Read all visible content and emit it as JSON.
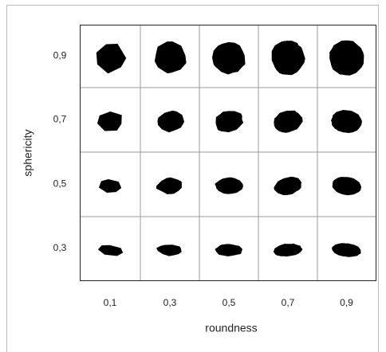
{
  "axes": {
    "x_label": "roundness",
    "x_ticks": [
      "0,1",
      "0,3",
      "0,5",
      "0,7",
      "0,9"
    ],
    "y_label": "sphericity",
    "y_ticks": [
      "0,9",
      "0,7",
      "0,5",
      "0,3"
    ]
  }
}
